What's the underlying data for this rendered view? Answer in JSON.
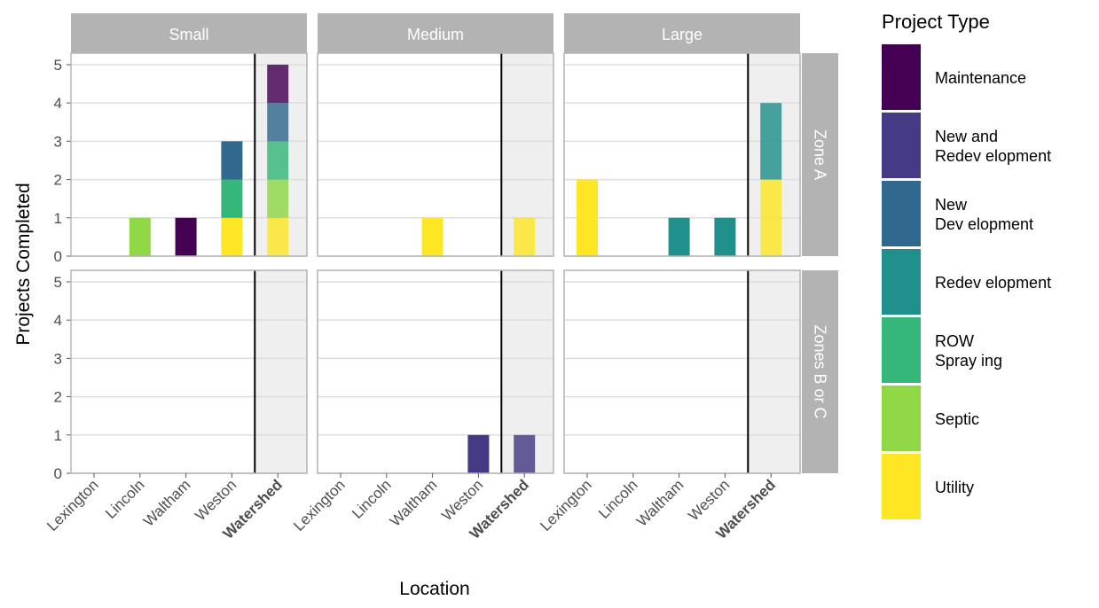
{
  "chart_data": {
    "type": "bar",
    "stacked": true,
    "xlabel": "Location",
    "ylabel": "Projects Completed",
    "ylim": [
      0,
      5.3
    ],
    "yticks": [
      0,
      1,
      2,
      3,
      4,
      5
    ],
    "grid": true,
    "legend_position": "right",
    "categories": [
      "Lexington",
      "Lincoln",
      "Waltham",
      "Weston",
      "Watershed"
    ],
    "bold_categories": [
      "Watershed"
    ],
    "shaded_category": "Watershed",
    "facet_columns": [
      "Small",
      "Medium",
      "Large"
    ],
    "facet_rows": [
      "Zone A",
      "Zones B or C"
    ],
    "legend": {
      "title": "Project Type",
      "items": [
        {
          "name": "Maintenance",
          "lines": [
            "Maintenance"
          ],
          "color": "#440154"
        },
        {
          "name": "New and Redevelopment",
          "lines": [
            "New and",
            "Redev elopment"
          ],
          "color": "#443A83"
        },
        {
          "name": "New Development",
          "lines": [
            "New",
            "Dev elopment"
          ],
          "color": "#31688E"
        },
        {
          "name": "Redevelopment",
          "lines": [
            "Redev elopment"
          ],
          "color": "#21908C"
        },
        {
          "name": "ROW Spraying",
          "lines": [
            "ROW",
            "Spray ing"
          ],
          "color": "#35B779"
        },
        {
          "name": "Septic",
          "lines": [
            "Septic"
          ],
          "color": "#8FD744"
        },
        {
          "name": "Utility",
          "lines": [
            "Utility"
          ],
          "color": "#FDE725"
        }
      ]
    },
    "stack_order": [
      "Utility",
      "Septic",
      "ROW Spraying",
      "Redevelopment",
      "New Development",
      "New and Redevelopment",
      "Maintenance"
    ],
    "panels": [
      {
        "row": "Zone A",
        "column": "Small",
        "bars": {
          "Lincoln": {
            "Septic": 1
          },
          "Waltham": {
            "Maintenance": 1
          },
          "Weston": {
            "Utility": 1,
            "ROW Spraying": 1,
            "New Development": 1
          },
          "Watershed": {
            "Utility": 1,
            "Septic": 1,
            "ROW Spraying": 1,
            "New Development": 1,
            "Maintenance": 1
          }
        }
      },
      {
        "row": "Zone A",
        "column": "Medium",
        "bars": {
          "Waltham": {
            "Utility": 1
          },
          "Watershed": {
            "Utility": 1
          }
        }
      },
      {
        "row": "Zone A",
        "column": "Large",
        "bars": {
          "Lexington": {
            "Utility": 2
          },
          "Waltham": {
            "Redevelopment": 1
          },
          "Weston": {
            "Redevelopment": 1
          },
          "Watershed": {
            "Utility": 2,
            "Redevelopment": 2
          }
        }
      },
      {
        "row": "Zones B or C",
        "column": "Small",
        "bars": {}
      },
      {
        "row": "Zones B or C",
        "column": "Medium",
        "bars": {
          "Weston": {
            "New and Redevelopment": 1
          },
          "Watershed": {
            "New and Redevelopment": 1
          }
        }
      },
      {
        "row": "Zones B or C",
        "column": "Large",
        "bars": {}
      }
    ]
  }
}
